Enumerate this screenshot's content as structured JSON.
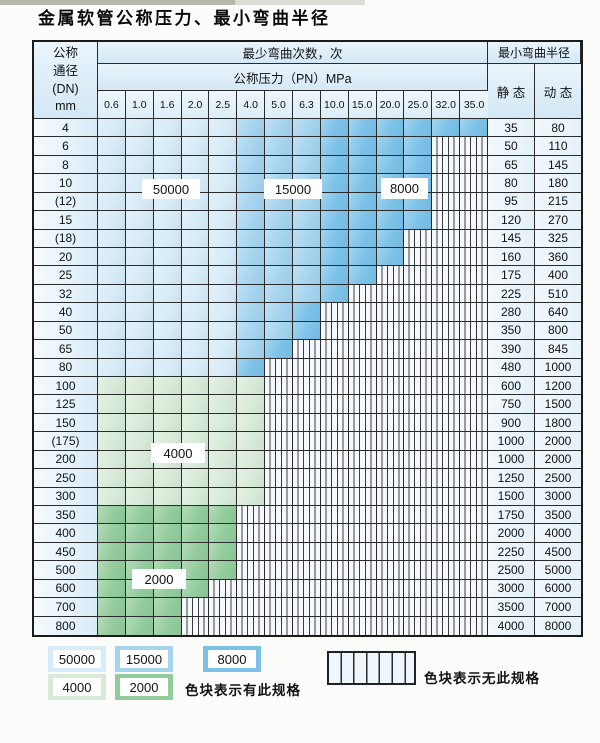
{
  "title": "金属软管公称压力、最小弯曲半径",
  "table": {
    "dn_header_lines": [
      "公称",
      "通径",
      "(DN)",
      "mm"
    ],
    "bend_cycles_header": "最少弯曲次数，次",
    "pressure_header": "公称压力（PN）MPa",
    "radius_header": "最小弯曲半径",
    "static_header": "静 态",
    "dynamic_header": "动 态",
    "pressure_columns": [
      "0.6",
      "1.0",
      "1.6",
      "2.0",
      "2.5",
      "4.0",
      "5.0",
      "6.3",
      "10.0",
      "15.0",
      "20.0",
      "25.0",
      "32.0",
      "35.0"
    ],
    "zone_colors": {
      "a": "#d7ebf8",
      "b": "#a6d4ef",
      "c": "#7cc2e8",
      "d": "#d8ebd8",
      "e": "#93cc9c"
    },
    "zone_labels": {
      "a": "50000",
      "b": "15000",
      "c": "8000",
      "d": "4000",
      "e": "2000",
      "x": "无此规格"
    },
    "rows": [
      {
        "dn": "4",
        "cells": "aaaaabbbcccccc",
        "static": "35",
        "dynamic": "80"
      },
      {
        "dn": "6",
        "cells": "aaaaabbbccccxx",
        "static": "50",
        "dynamic": "110"
      },
      {
        "dn": "8",
        "cells": "aaaaabbbccccxx",
        "static": "65",
        "dynamic": "145"
      },
      {
        "dn": "10",
        "cells": "aaaaabbbccccxx",
        "static": "80",
        "dynamic": "180"
      },
      {
        "dn": "(12)",
        "cells": "aaaaabbbccccxx",
        "static": "95",
        "dynamic": "215"
      },
      {
        "dn": "15",
        "cells": "aaaaabbbccccxx",
        "static": "120",
        "dynamic": "270"
      },
      {
        "dn": "(18)",
        "cells": "aaaaabbbcccxxx",
        "static": "145",
        "dynamic": "325"
      },
      {
        "dn": "20",
        "cells": "aaaaabbbcccxxx",
        "static": "160",
        "dynamic": "360"
      },
      {
        "dn": "25",
        "cells": "aaaaabbbccxxxx",
        "static": "175",
        "dynamic": "400"
      },
      {
        "dn": "32",
        "cells": "aaaaabbbcxxxxx",
        "static": "225",
        "dynamic": "510"
      },
      {
        "dn": "40",
        "cells": "aaaaabbcxxxxxx",
        "static": "280",
        "dynamic": "640"
      },
      {
        "dn": "50",
        "cells": "aaaaabbcxxxxxx",
        "static": "350",
        "dynamic": "800"
      },
      {
        "dn": "65",
        "cells": "aaaaabcxxxxxxx",
        "static": "390",
        "dynamic": "845"
      },
      {
        "dn": "80",
        "cells": "aaaaacxxxxxxxx",
        "static": "480",
        "dynamic": "1000"
      },
      {
        "dn": "100",
        "cells": "ddddddxxxxxxxx",
        "static": "600",
        "dynamic": "1200"
      },
      {
        "dn": "125",
        "cells": "ddddddxxxxxxxx",
        "static": "750",
        "dynamic": "1500"
      },
      {
        "dn": "150",
        "cells": "ddddddxxxxxxxx",
        "static": "900",
        "dynamic": "1800"
      },
      {
        "dn": "(175)",
        "cells": "ddddddxxxxxxxx",
        "static": "1000",
        "dynamic": "2000"
      },
      {
        "dn": "200",
        "cells": "ddddddxxxxxxxx",
        "static": "1000",
        "dynamic": "2000"
      },
      {
        "dn": "250",
        "cells": "ddddddxxxxxxxx",
        "static": "1250",
        "dynamic": "2500"
      },
      {
        "dn": "300",
        "cells": "ddddddxxxxxxxx",
        "static": "1500",
        "dynamic": "3000"
      },
      {
        "dn": "350",
        "cells": "eeeeexxxxxxxxx",
        "static": "1750",
        "dynamic": "3500"
      },
      {
        "dn": "400",
        "cells": "eeeeexxxxxxxxx",
        "static": "2000",
        "dynamic": "4000"
      },
      {
        "dn": "450",
        "cells": "eeeeexxxxxxxxx",
        "static": "2250",
        "dynamic": "4500"
      },
      {
        "dn": "500",
        "cells": "eeeeexxxxxxxxx",
        "static": "2500",
        "dynamic": "5000"
      },
      {
        "dn": "600",
        "cells": "eeeexxxxxxxxxx",
        "static": "3000",
        "dynamic": "6000"
      },
      {
        "dn": "700",
        "cells": "eeexxxxxxxxxxx",
        "static": "3500",
        "dynamic": "7000"
      },
      {
        "dn": "800",
        "cells": "eeexxxxxxxxxxx",
        "static": "4000",
        "dynamic": "8000"
      }
    ],
    "overlay_labels": [
      "50000",
      "15000",
      "8000",
      "4000",
      "2000"
    ]
  },
  "legend": {
    "items": [
      {
        "label": "50000",
        "color": "#d7ebf8"
      },
      {
        "label": "15000",
        "color": "#a6d4ef"
      },
      {
        "label": "8000",
        "color": "#7cc2e8"
      },
      {
        "label": "4000",
        "color": "#d8ebd8"
      },
      {
        "label": "2000",
        "color": "#93cc9c"
      }
    ],
    "note_has": "色块表示有此规格",
    "note_none": "色块表示无此规格"
  }
}
